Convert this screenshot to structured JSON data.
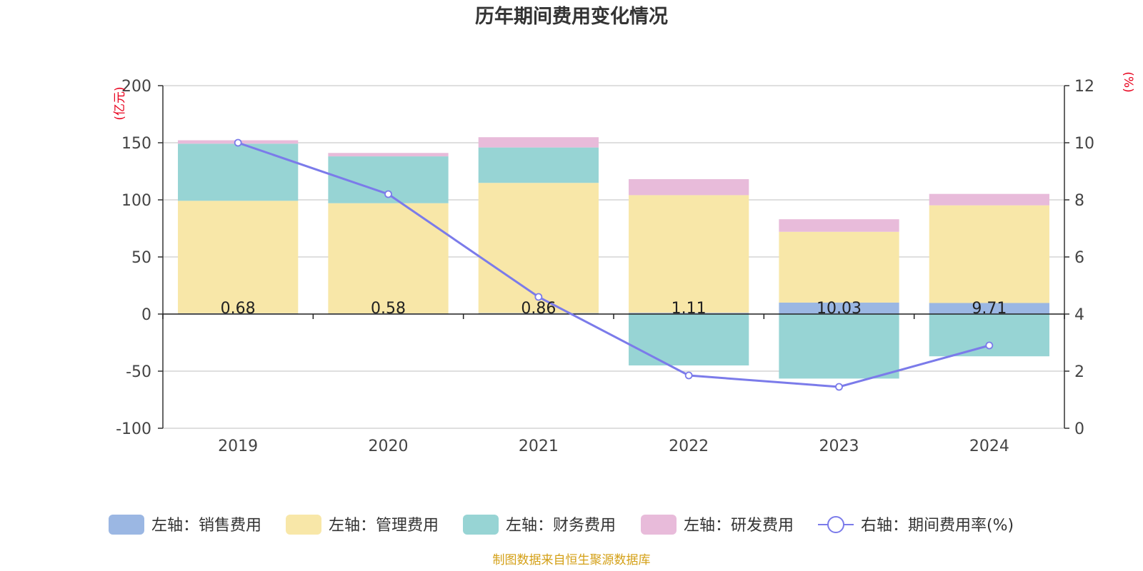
{
  "chart_data": {
    "type": "bar",
    "title": "历年期间费用变化情况",
    "categories": [
      "2019",
      "2020",
      "2021",
      "2022",
      "2023",
      "2024"
    ],
    "left_axis": {
      "unit": "(亿元)",
      "ylim": [
        -100,
        200
      ],
      "ticks": [
        "200",
        "150",
        "100",
        "50",
        "0",
        "-50",
        "-100"
      ]
    },
    "right_axis": {
      "unit": "(%)",
      "ylim": [
        0,
        12
      ],
      "ticks": [
        "12",
        "10",
        "8",
        "6",
        "4",
        "2",
        "0"
      ]
    },
    "series": [
      {
        "name": "左轴：销售费用",
        "type": "bar",
        "axis": "left",
        "color": "#9bb7e3",
        "values": [
          0.68,
          0.58,
          0.86,
          1.11,
          10.03,
          9.71
        ],
        "labels": [
          "0.68",
          "0.58",
          "0.86",
          "1.11",
          "10.03",
          "9.71"
        ]
      },
      {
        "name": "左轴：管理费用",
        "type": "bar",
        "axis": "left",
        "color": "#f8e7a8",
        "values": [
          98.5,
          96.5,
          114.0,
          103.0,
          62.0,
          85.5
        ]
      },
      {
        "name": "左轴：财务费用",
        "type": "bar",
        "axis": "left",
        "color": "#97d4d4",
        "values": [
          50.0,
          41.0,
          31.0,
          -45.0,
          -56.5,
          -37.0
        ]
      },
      {
        "name": "左轴：研发费用",
        "type": "bar",
        "axis": "left",
        "color": "#e8bbda",
        "values": [
          3.0,
          3.0,
          9.0,
          14.0,
          11.0,
          10.0
        ]
      },
      {
        "name": "右轴：期间费用率(%)",
        "type": "line",
        "axis": "right",
        "color": "#7b7bea",
        "values": [
          10.0,
          8.2,
          4.6,
          1.85,
          1.45,
          2.9
        ]
      }
    ],
    "grid": true,
    "legend_position": "bottom"
  },
  "footer": {
    "source": "制图数据来自恒生聚源数据库"
  }
}
